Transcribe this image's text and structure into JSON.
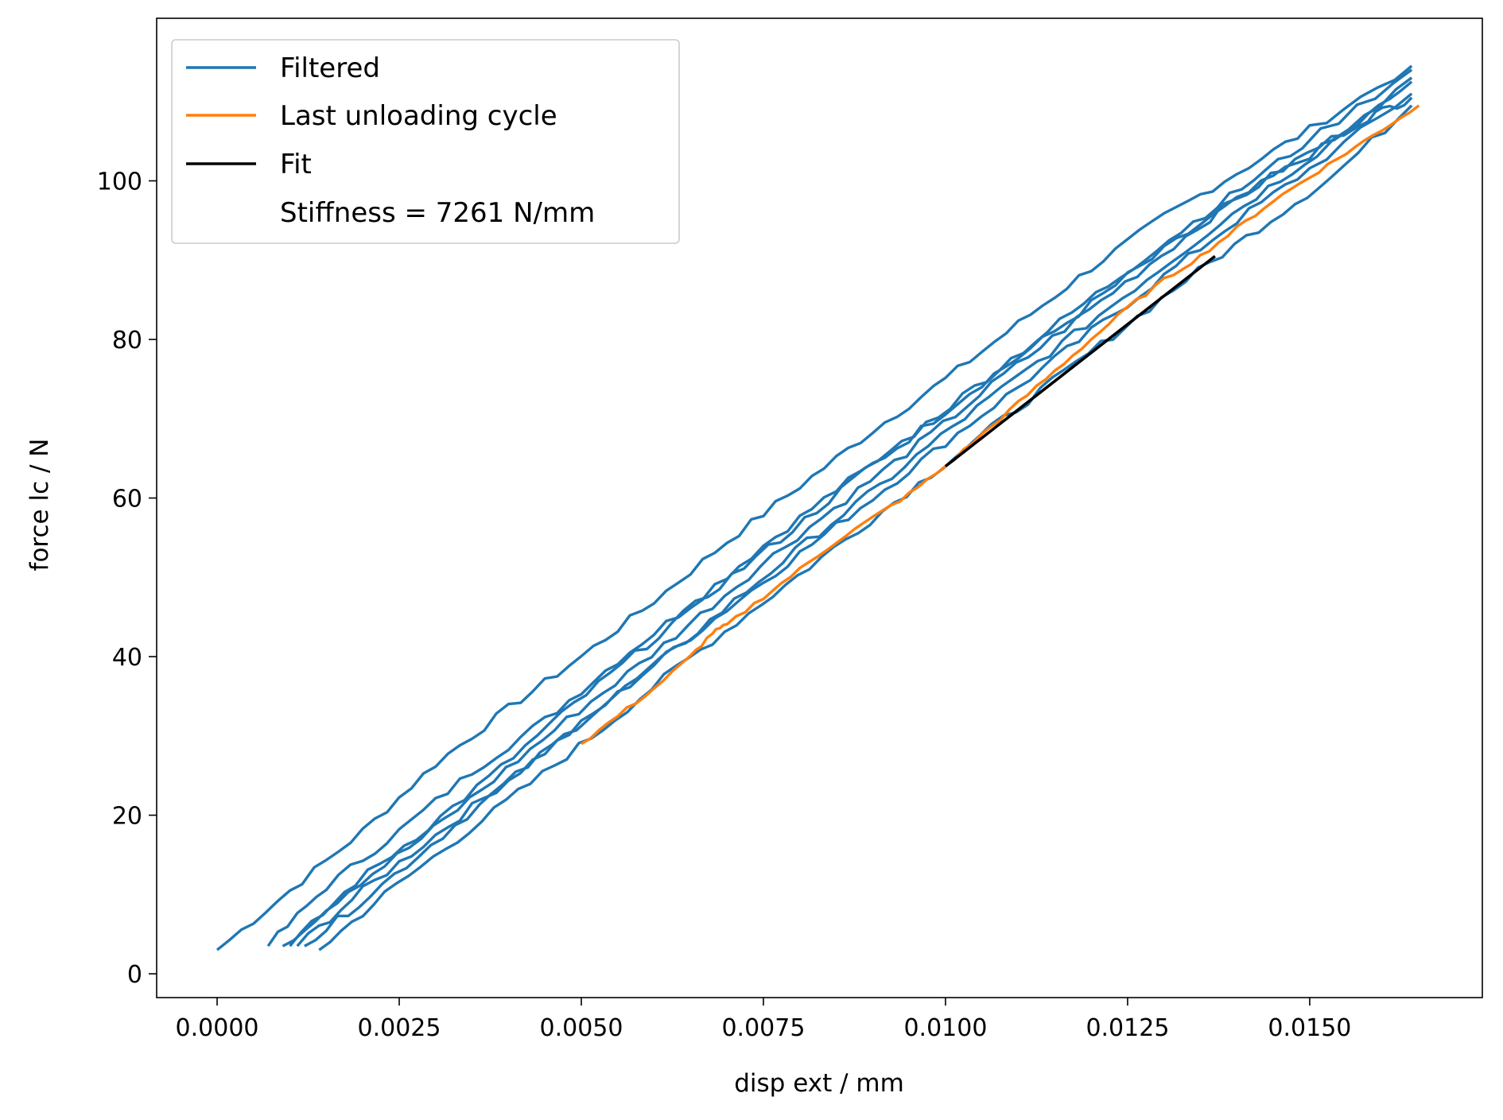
{
  "chart_data": {
    "type": "line",
    "title": "",
    "xlabel": "disp ext / mm",
    "ylabel": "force lc / N",
    "xlim": [
      -0.00083,
      0.01737
    ],
    "ylim": [
      -3.0,
      120.5
    ],
    "xticks": [
      0.0,
      0.0025,
      0.005,
      0.0075,
      0.01,
      0.0125,
      0.015
    ],
    "xtick_labels": [
      "0.0000",
      "0.0025",
      "0.0050",
      "0.0075",
      "0.0100",
      "0.0125",
      "0.0150"
    ],
    "yticks": [
      0,
      20,
      40,
      60,
      80,
      100
    ],
    "ytick_labels": [
      "0",
      "20",
      "40",
      "60",
      "80",
      "100"
    ],
    "grid": false,
    "legend": {
      "placement": "top-left",
      "entries": [
        {
          "label": "Filtered",
          "color": "#1f77b4"
        },
        {
          "label": "Last unloading cycle",
          "color": "#ff7f0e"
        },
        {
          "label": "Fit",
          "color": "#000000"
        },
        {
          "label": "Stiffness = 7261 N/mm",
          "color": "none"
        }
      ]
    },
    "series": [
      {
        "name": "Filtered",
        "color": "#1f77b4",
        "cycles": [
          {
            "x": [
              0.0,
              0.001,
              0.002,
              0.003,
              0.004,
              0.005,
              0.006,
              0.007,
              0.008,
              0.009,
              0.01,
              0.011,
              0.012,
              0.013,
              0.014,
              0.015,
              0.0164
            ],
            "y": [
              3.0,
              10.5,
              18.0,
              26.5,
              33.5,
              40.0,
              47.0,
              54.5,
              61.5,
              68.5,
              75.0,
              82.0,
              89.0,
              95.5,
              101.0,
              106.5,
              114.5
            ]
          },
          {
            "x": [
              0.0007,
              0.0015,
              0.0025,
              0.0035,
              0.0045,
              0.0055,
              0.0065,
              0.0075,
              0.0085,
              0.0095,
              0.0105,
              0.0115,
              0.0125,
              0.0135,
              0.0145,
              0.0155,
              0.0164
            ],
            "y": [
              3.5,
              11.0,
              18.0,
              25.5,
              32.0,
              39.5,
              46.5,
              54.0,
              61.0,
              67.5,
              74.5,
              81.0,
              88.0,
              94.5,
              100.5,
              106.0,
              112.5
            ]
          },
          {
            "x": [
              0.0011,
              0.002,
              0.003,
              0.004,
              0.005,
              0.006,
              0.007,
              0.008,
              0.009,
              0.01,
              0.011,
              0.012,
              0.013,
              0.014,
              0.015,
              0.0164
            ],
            "y": [
              3.5,
              10.5,
              17.5,
              24.5,
              31.5,
              39.0,
              46.0,
              53.0,
              60.0,
              67.0,
              74.0,
              81.0,
              88.0,
              95.0,
              101.5,
              111.0
            ]
          },
          {
            "x": [
              0.0014,
              0.0023,
              0.0033,
              0.0043,
              0.0053,
              0.0063,
              0.0073,
              0.0083,
              0.0093,
              0.0103,
              0.0113,
              0.0123,
              0.0133,
              0.0143,
              0.0153,
              0.0164
            ],
            "y": [
              3.0,
              10.0,
              17.0,
              24.0,
              31.0,
              38.5,
              45.5,
              52.5,
              59.5,
              66.5,
              73.5,
              80.5,
              87.5,
              94.0,
              100.5,
              109.5
            ]
          },
          {
            "x": [
              0.0009,
              0.0018,
              0.0028,
              0.0038,
              0.0048,
              0.0058,
              0.0068,
              0.0078,
              0.0088,
              0.0098,
              0.0108,
              0.0118,
              0.0128,
              0.0138,
              0.0148,
              0.0158,
              0.0164
            ],
            "y": [
              3.5,
              10.5,
              17.0,
              24.5,
              32.0,
              39.0,
              46.5,
              54.0,
              61.0,
              68.0,
              75.5,
              82.5,
              89.5,
              96.5,
              102.5,
              108.0,
              110.5
            ]
          },
          {
            "x": [
              0.0012,
              0.0021,
              0.0031,
              0.0041,
              0.0051,
              0.0061,
              0.0071,
              0.0081,
              0.0091,
              0.0101,
              0.0111,
              0.0121,
              0.0131,
              0.0141,
              0.0151,
              0.0164
            ],
            "y": [
              3.5,
              10.0,
              17.5,
              25.0,
              32.5,
              39.5,
              47.0,
              54.5,
              61.5,
              69.0,
              76.0,
              83.0,
              90.0,
              97.0,
              103.5,
              113.0
            ]
          },
          {
            "x": [
              0.001,
              0.0019,
              0.0029,
              0.0039,
              0.0049,
              0.0059,
              0.0069,
              0.0079,
              0.0089,
              0.0099,
              0.0109,
              0.0119,
              0.0129,
              0.0139,
              0.0149,
              0.0164
            ],
            "y": [
              3.5,
              11.5,
              18.5,
              26.0,
              34.0,
              41.5,
              49.0,
              56.0,
              63.5,
              70.5,
              77.5,
              84.5,
              91.5,
              98.0,
              104.5,
              114.0
            ]
          }
        ]
      },
      {
        "name": "Last unloading cycle",
        "color": "#ff7f0e",
        "x": [
          0.005,
          0.0055,
          0.006,
          0.0065,
          0.0068,
          0.007,
          0.0075,
          0.008,
          0.0085,
          0.009,
          0.0095,
          0.01,
          0.0105,
          0.011,
          0.0115,
          0.012,
          0.0125,
          0.013,
          0.0135,
          0.014,
          0.0145,
          0.015,
          0.0155,
          0.016,
          0.0165
        ],
        "y": [
          29.0,
          32.5,
          36.0,
          40.0,
          43.0,
          44.0,
          47.5,
          51.0,
          54.5,
          57.5,
          60.5,
          64.0,
          68.0,
          72.0,
          76.0,
          80.0,
          84.0,
          87.5,
          90.5,
          94.0,
          97.5,
          100.5,
          103.5,
          106.5,
          109.5
        ]
      },
      {
        "name": "Fit",
        "color": "#000000",
        "x": [
          0.01,
          0.0137
        ],
        "y": [
          64.0,
          90.5
        ]
      }
    ]
  }
}
